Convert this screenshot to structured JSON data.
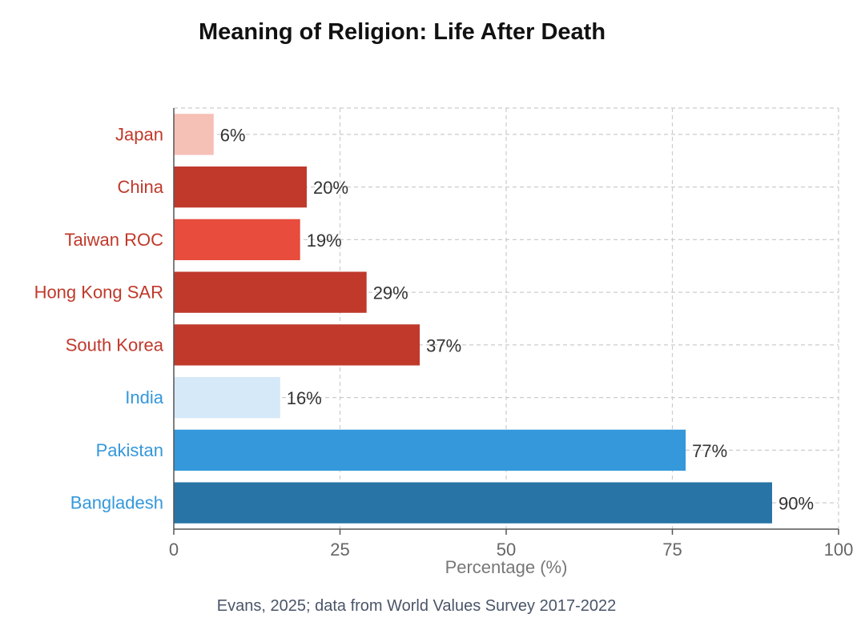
{
  "chart_data": {
    "type": "bar",
    "orientation": "horizontal",
    "title": "Meaning of Religion: Life After Death",
    "xlabel": "Percentage (%)",
    "ylabel": "",
    "xlim": [
      0,
      100
    ],
    "xticks": [
      0,
      25,
      50,
      75,
      100
    ],
    "grid": true,
    "categories": [
      "Japan",
      "China",
      "Taiwan ROC",
      "Hong Kong SAR",
      "South Korea",
      "India",
      "Pakistan",
      "Bangladesh"
    ],
    "values": [
      6,
      20,
      19,
      29,
      37,
      16,
      77,
      90
    ],
    "value_labels": [
      "6%",
      "20%",
      "19%",
      "29%",
      "37%",
      "16%",
      "77%",
      "90%"
    ],
    "bar_colors": [
      "#f5c0b5",
      "#c0392b",
      "#e74c3c",
      "#c0392b",
      "#c0392b",
      "#d6e9f8",
      "#3498db",
      "#2874a6"
    ],
    "label_colors": [
      "#c0392b",
      "#c0392b",
      "#c0392b",
      "#c0392b",
      "#c0392b",
      "#3498db",
      "#3498db",
      "#3498db"
    ]
  },
  "caption": "Evans, 2025; data from World Values Survey 2017-2022"
}
